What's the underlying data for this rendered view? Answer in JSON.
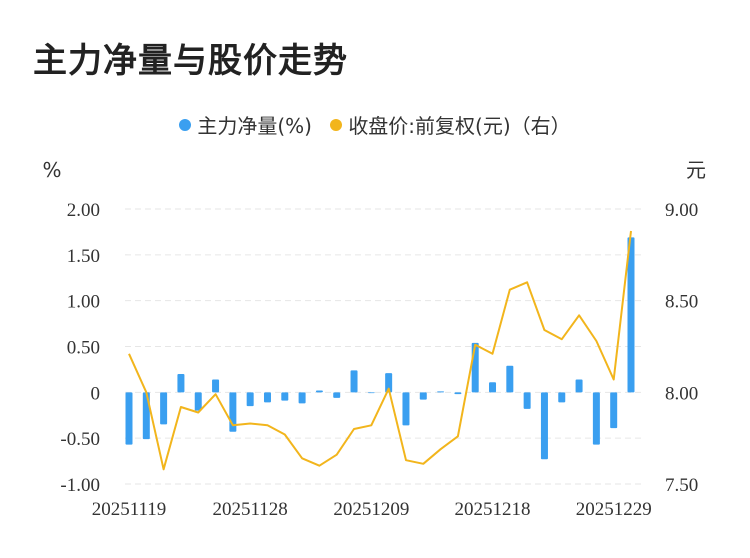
{
  "header": {
    "title": "主力净量与股价走势"
  },
  "chart_data": {
    "type": "bar",
    "legend": [
      {
        "label": "主力净量(%)",
        "color": "#3a9ff0"
      },
      {
        "label": "收盘价:前复权(元)（右）",
        "color": "#f2b51c"
      }
    ],
    "y_left": {
      "unit": "%",
      "min": -1.0,
      "max": 2.0,
      "ticks": [
        -1.0,
        -0.5,
        0,
        0.5,
        1.0,
        1.5,
        2.0
      ],
      "tick_labels": [
        "-1.00",
        "-0.50",
        "0",
        "0.50",
        "1.00",
        "1.50",
        "2.00"
      ]
    },
    "y_right": {
      "unit": "元",
      "min": 7.5,
      "max": 9.0,
      "ticks": [
        7.5,
        8.0,
        8.5,
        9.0
      ],
      "tick_labels": [
        "7.50",
        "8.00",
        "8.50",
        "9.00"
      ]
    },
    "x_tick_labels": [
      {
        "index": 0,
        "label": "20251119"
      },
      {
        "index": 7,
        "label": "20251128"
      },
      {
        "index": 14,
        "label": "20251209"
      },
      {
        "index": 21,
        "label": "20251218"
      },
      {
        "index": 28,
        "label": "20251229"
      }
    ],
    "series": [
      {
        "name": "主力净量(%)",
        "type": "bar",
        "values": [
          -0.57,
          -0.51,
          -0.35,
          0.2,
          -0.2,
          0.14,
          -0.43,
          -0.15,
          -0.11,
          -0.09,
          -0.12,
          0.02,
          -0.06,
          0.24,
          0.0,
          0.21,
          -0.36,
          -0.08,
          0.01,
          -0.02,
          0.54,
          0.11,
          0.29,
          -0.18,
          -0.73,
          -0.11,
          0.14,
          -0.57,
          -0.39,
          1.69
        ]
      },
      {
        "name": "收盘价:前复权(元)（右）",
        "type": "line",
        "values": [
          8.21,
          8.0,
          7.58,
          7.92,
          7.89,
          7.99,
          7.82,
          7.83,
          7.82,
          7.77,
          7.64,
          7.6,
          7.66,
          7.8,
          7.82,
          8.02,
          7.63,
          7.61,
          7.69,
          7.76,
          8.26,
          8.21,
          8.56,
          8.6,
          8.34,
          8.29,
          8.42,
          8.28,
          8.07,
          8.88
        ]
      }
    ]
  }
}
